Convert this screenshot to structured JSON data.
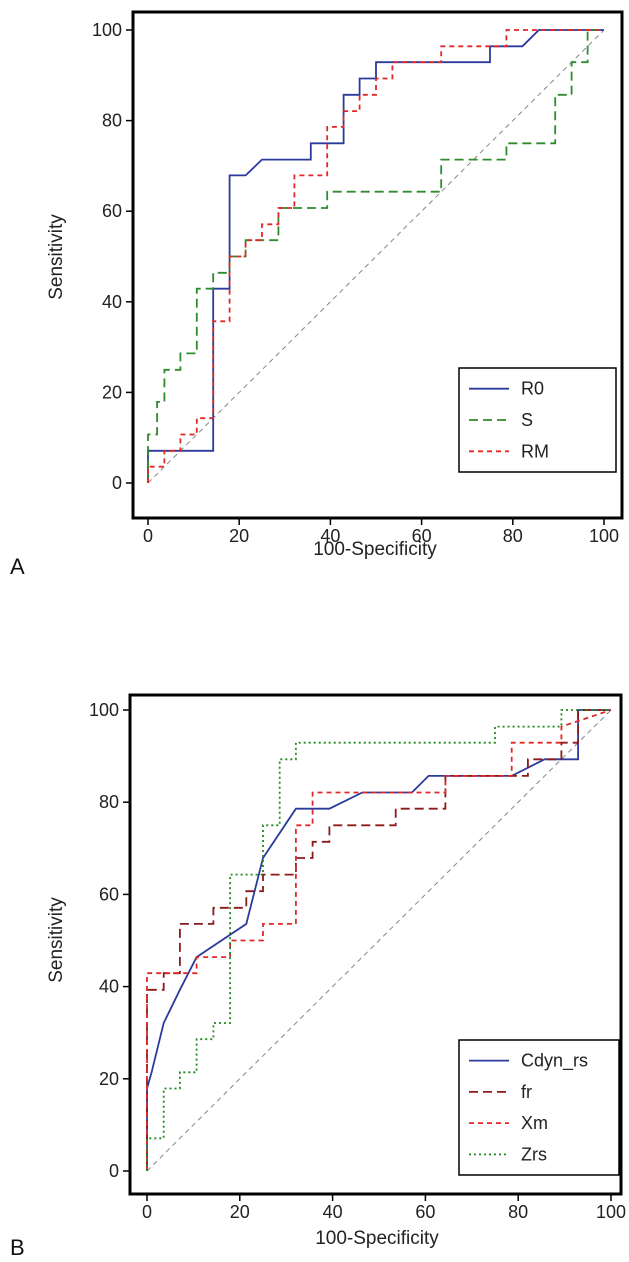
{
  "chart_data": [
    {
      "type": "line",
      "panel_label": "A",
      "xlabel": "100-Specificity",
      "ylabel": "Sensitivity",
      "xlim": [
        0,
        100
      ],
      "ylim": [
        0,
        100
      ],
      "xticks": [
        "0",
        "20",
        "40",
        "60",
        "80",
        "100"
      ],
      "yticks": [
        "0",
        "20",
        "40",
        "60",
        "80",
        "100"
      ],
      "legend_position": "bottom-right",
      "diagonal_reference": true,
      "series": [
        {
          "name": "R0",
          "color": "#2b3a9c",
          "dash": "solid",
          "x": [
            0,
            0,
            14.3,
            14.3,
            17.9,
            17.9,
            21.4,
            25,
            35.7,
            35.7,
            42.9,
            42.9,
            46.4,
            46.4,
            50,
            50,
            75,
            75,
            82.1,
            85.7,
            100
          ],
          "y": [
            0,
            7.1,
            7.1,
            42.9,
            42.9,
            67.9,
            67.9,
            71.4,
            71.4,
            75,
            75,
            85.7,
            85.7,
            89.3,
            89.3,
            92.9,
            92.9,
            96.4,
            96.4,
            100,
            100
          ]
        },
        {
          "name": "S",
          "color": "#2e8b2e",
          "dash": "long",
          "x": [
            0,
            0,
            2,
            2,
            3.6,
            3.6,
            7.1,
            7.1,
            10.7,
            10.7,
            14.3,
            14.3,
            17.9,
            17.9,
            21.4,
            21.4,
            28.6,
            28.6,
            32.1,
            35.7,
            35.7,
            39.3,
            39.3,
            64.3,
            64.3,
            78.6,
            78.6,
            89.3,
            89.3,
            92.9,
            92.9,
            96.4,
            96.4,
            100
          ],
          "y": [
            0,
            10.7,
            10.7,
            17.9,
            17.9,
            25,
            25,
            28.6,
            28.6,
            42.9,
            42.9,
            46.4,
            46.4,
            50,
            50,
            53.6,
            53.6,
            60.7,
            60.7,
            60.7,
            60.7,
            60.7,
            64.3,
            64.3,
            71.4,
            71.4,
            75,
            75,
            85.7,
            85.7,
            92.9,
            92.9,
            100,
            100
          ]
        },
        {
          "name": "RM",
          "color": "#e02828",
          "dash": "short",
          "x": [
            0,
            0,
            3.6,
            3.6,
            7.1,
            7.1,
            10.7,
            10.7,
            14.3,
            14.3,
            17.9,
            17.9,
            21.4,
            21.4,
            25,
            25,
            28.6,
            28.6,
            32.1,
            32.1,
            39.3,
            39.3,
            42.9,
            42.9,
            46.4,
            46.4,
            50,
            50,
            53.6,
            53.6,
            64.3,
            64.3,
            78.6,
            78.6,
            100
          ],
          "y": [
            0,
            3.6,
            3.6,
            7.1,
            7.1,
            10.7,
            10.7,
            14.3,
            14.3,
            35.7,
            35.7,
            50,
            50,
            53.6,
            53.6,
            57.1,
            57.1,
            60.7,
            60.7,
            67.9,
            67.9,
            78.6,
            78.6,
            82.1,
            82.1,
            85.7,
            85.7,
            89.3,
            89.3,
            92.9,
            92.9,
            96.4,
            96.4,
            100,
            100
          ]
        }
      ]
    },
    {
      "type": "line",
      "panel_label": "B",
      "xlabel": "100-Specificity",
      "ylabel": "Sensitivity",
      "xlim": [
        0,
        100
      ],
      "ylim": [
        0,
        100
      ],
      "xticks": [
        "0",
        "20",
        "40",
        "60",
        "80",
        "100"
      ],
      "yticks": [
        "0",
        "20",
        "40",
        "60",
        "80",
        "100"
      ],
      "legend_position": "bottom-right",
      "diagonal_reference": true,
      "series": [
        {
          "name": "Cdyn_rs",
          "color": "#2b3a9c",
          "dash": "solid",
          "x": [
            0,
            0,
            1,
            3.6,
            7.1,
            10.7,
            21.4,
            25,
            32.1,
            39.3,
            46.4,
            57.1,
            60.7,
            78.6,
            85.7,
            92.9,
            92.9,
            100
          ],
          "y": [
            0,
            17.9,
            21.4,
            32.1,
            39.3,
            46.4,
            53.6,
            67.9,
            78.6,
            78.6,
            82.1,
            82.1,
            85.7,
            85.7,
            89.3,
            89.3,
            100,
            100
          ]
        },
        {
          "name": "fr",
          "color": "#8b1a1a",
          "dash": "long",
          "x": [
            0,
            0,
            3.6,
            3.6,
            7.1,
            7.1,
            14.3,
            14.3,
            17.9,
            17.9,
            21.4,
            21.4,
            25,
            25,
            28.6,
            28.6,
            32.1,
            32.1,
            35.7,
            35.7,
            39.3,
            39.3,
            53.6,
            53.6,
            64.3,
            64.3,
            82.1,
            82.1,
            89.3,
            89.3,
            92.9,
            92.9,
            100
          ],
          "y": [
            0,
            39.3,
            39.3,
            42.9,
            42.9,
            53.6,
            53.6,
            57.1,
            57.1,
            57.1,
            57.1,
            60.7,
            60.7,
            64.3,
            64.3,
            64.3,
            64.3,
            67.9,
            67.9,
            71.4,
            71.4,
            75,
            75,
            78.6,
            78.6,
            85.7,
            85.7,
            89.3,
            89.3,
            92.9,
            92.9,
            100,
            100
          ]
        },
        {
          "name": "Xm",
          "color": "#e02828",
          "dash": "short",
          "x": [
            0,
            0,
            10.7,
            10.7,
            17.9,
            17.9,
            25,
            25,
            28.6,
            28.6,
            32.1,
            32.1,
            35.7,
            35.7,
            64.3,
            64.3,
            78.6,
            78.6,
            89.3,
            89.3,
            100
          ],
          "y": [
            0,
            42.9,
            42.9,
            46.4,
            46.4,
            50,
            50,
            53.6,
            53.6,
            53.6,
            53.6,
            75,
            75,
            82.1,
            82.1,
            85.7,
            85.7,
            92.9,
            92.9,
            96.4,
            100
          ]
        },
        {
          "name": "Zrs",
          "color": "#1e8b1e",
          "dash": "dotted",
          "x": [
            0,
            0,
            3.6,
            3.6,
            7.1,
            7.1,
            10.7,
            10.7,
            14.3,
            14.3,
            17.9,
            17.9,
            25,
            25,
            28.6,
            28.6,
            32.1,
            32.1,
            75,
            75,
            89.3,
            89.3,
            100
          ],
          "y": [
            0,
            7.1,
            7.1,
            17.9,
            17.9,
            21.4,
            21.4,
            28.6,
            28.6,
            32.1,
            32.1,
            64.3,
            64.3,
            75,
            75,
            89.3,
            89.3,
            92.9,
            92.9,
            96.4,
            96.4,
            100,
            100
          ]
        }
      ]
    }
  ]
}
